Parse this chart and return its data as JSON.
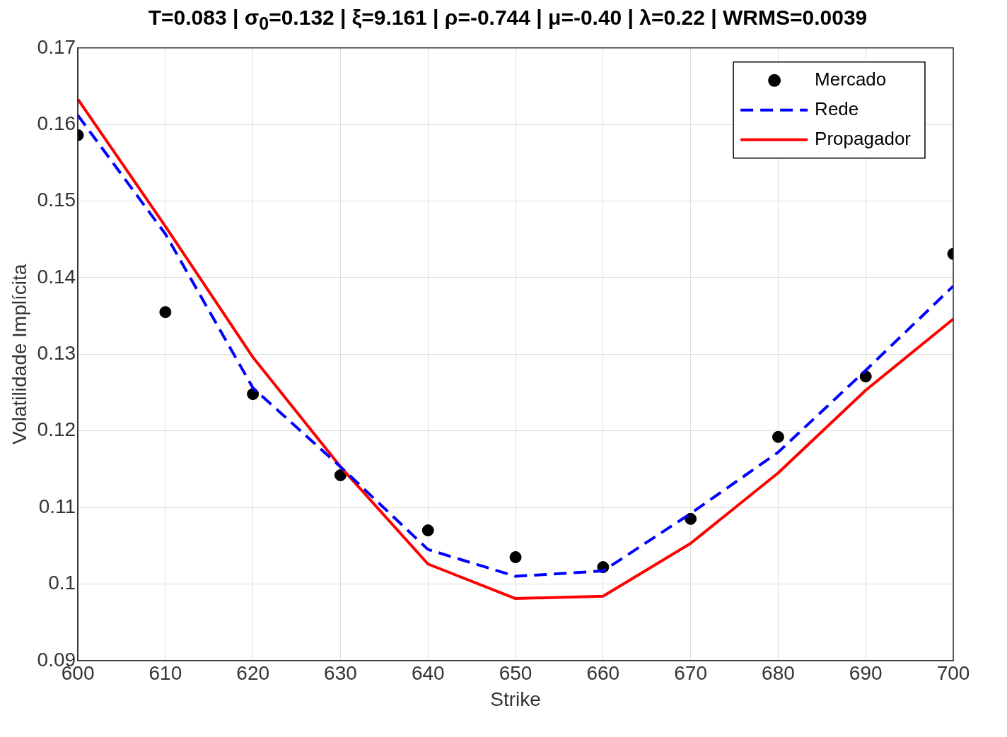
{
  "chart_data": {
    "type": "line",
    "title": "T=0.083 | σ$_{0}$=0.132 | ξ=9.161 | ρ=-0.744 | μ=-0.40 | λ=0.22 | WRMS=0.0039",
    "xlabel": "Strike",
    "ylabel": "Volatilidade Implícita",
    "x": [
      600,
      610,
      620,
      630,
      640,
      650,
      660,
      670,
      680,
      690,
      700
    ],
    "series": [
      {
        "name": "Mercado",
        "type": "scatter",
        "color": "#000000",
        "marker": "circle",
        "values": [
          0.1586,
          0.1355,
          0.1248,
          0.1142,
          0.107,
          0.1035,
          0.1022,
          0.1085,
          0.1192,
          0.1271,
          0.1431
        ]
      },
      {
        "name": "Rede",
        "type": "line",
        "color": "#0000ff",
        "line_style": "dashed",
        "marker": "none",
        "values": [
          0.1612,
          0.1457,
          0.1256,
          0.1153,
          0.1045,
          0.101,
          0.1017,
          0.1092,
          0.1172,
          0.1279,
          0.1389
        ]
      },
      {
        "name": "Propagador",
        "type": "line",
        "color": "#ff0000",
        "line_style": "solid",
        "marker": "none",
        "values": [
          0.1633,
          0.1467,
          0.1296,
          0.1153,
          0.1026,
          0.0981,
          0.0984,
          0.1053,
          0.1145,
          0.1253,
          0.1346
        ]
      }
    ],
    "xlim": [
      600,
      700
    ],
    "xticks": [
      600,
      610,
      620,
      630,
      640,
      650,
      660,
      670,
      680,
      690,
      700
    ],
    "ylim": [
      0.09,
      0.17
    ],
    "yticks": [
      0.09,
      0.1,
      0.11,
      0.12,
      0.13,
      0.14,
      0.15,
      0.16,
      0.17
    ],
    "grid": true,
    "legend": "top right"
  }
}
